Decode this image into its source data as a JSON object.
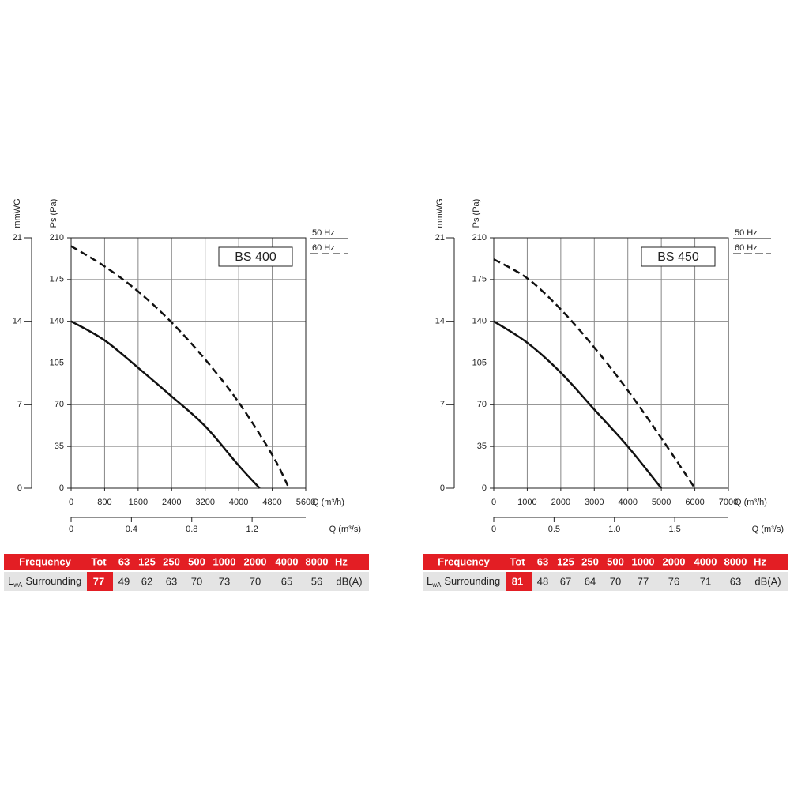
{
  "chart_data": [
    {
      "type": "line",
      "title": "BS 400",
      "xlabel": "Q (m³/h)",
      "ylabel": "Ps (Pa)",
      "y2label": "mmWG",
      "x2label": "Q (m³/s)",
      "xlim": [
        0,
        5600
      ],
      "xticks": [
        0,
        800,
        1600,
        2400,
        3200,
        4000,
        4800,
        5600
      ],
      "ylim": [
        0,
        210
      ],
      "yticks": [
        0,
        35,
        70,
        105,
        140,
        175,
        210
      ],
      "y2lim": [
        0,
        21
      ],
      "y2ticks": [
        0,
        7,
        14,
        21
      ],
      "x2lim": [
        0,
        1.5556
      ],
      "x2ticks": [
        0,
        0.4,
        0.8,
        1.2
      ],
      "grid": true,
      "legend": "right-top",
      "series": [
        {
          "name": "50 Hz",
          "color": "#111111",
          "style": "solid",
          "x": [
            0,
            800,
            1600,
            2400,
            3200,
            4000,
            4500
          ],
          "values": [
            140,
            124,
            101,
            77,
            52,
            19,
            0
          ]
        },
        {
          "name": "60 Hz",
          "color": "#111111",
          "style": "dashed",
          "x": [
            0,
            800,
            1600,
            2400,
            3200,
            4000,
            4800,
            5200
          ],
          "values": [
            203,
            186,
            165,
            139,
            108,
            72,
            28,
            0
          ]
        }
      ],
      "table": {
        "header": [
          "Frequency",
          "Tot",
          "63",
          "125",
          "250",
          "500",
          "1000",
          "2000",
          "4000",
          "8000",
          "Hz"
        ],
        "row_label": "L",
        "row_label_sub": "wA",
        "row_name": "Surrounding",
        "tot": 77,
        "values": [
          49,
          62,
          63,
          70,
          73,
          70,
          65,
          56
        ],
        "unit": "dB(A)"
      }
    },
    {
      "type": "line",
      "title": "BS 450",
      "xlabel": "Q (m³/h)",
      "ylabel": "Ps (Pa)",
      "y2label": "mmWG",
      "x2label": "Q (m³/s)",
      "xlim": [
        0,
        7000
      ],
      "xticks": [
        0,
        1000,
        2000,
        3000,
        4000,
        5000,
        6000,
        7000
      ],
      "ylim": [
        0,
        210
      ],
      "yticks": [
        0,
        35,
        70,
        105,
        140,
        175,
        210
      ],
      "y2lim": [
        0,
        21
      ],
      "y2ticks": [
        0,
        7,
        14,
        21
      ],
      "x2lim": [
        0,
        1.9444
      ],
      "x2ticks": [
        0,
        0.5,
        {
          "value": 1,
          "label": "1.0"
        },
        1.5
      ],
      "grid": true,
      "legend": "right-top",
      "series": [
        {
          "name": "50 Hz",
          "color": "#111111",
          "style": "solid",
          "x": [
            0,
            1000,
            2000,
            3000,
            4000,
            5000
          ],
          "values": [
            140,
            122,
            97,
            66,
            35,
            0
          ]
        },
        {
          "name": "60 Hz",
          "color": "#111111",
          "style": "dashed",
          "x": [
            0,
            1000,
            2000,
            3000,
            4000,
            5000,
            6000
          ],
          "values": [
            192,
            176,
            150,
            118,
            82,
            42,
            0
          ]
        }
      ],
      "table": {
        "header": [
          "Frequency",
          "Tot",
          "63",
          "125",
          "250",
          "500",
          "1000",
          "2000",
          "4000",
          "8000",
          "Hz"
        ],
        "row_label": "L",
        "row_label_sub": "wA",
        "row_name": "Surrounding",
        "tot": 81,
        "values": [
          48,
          67,
          64,
          70,
          77,
          76,
          71,
          63
        ],
        "unit": "dB(A)"
      }
    }
  ]
}
